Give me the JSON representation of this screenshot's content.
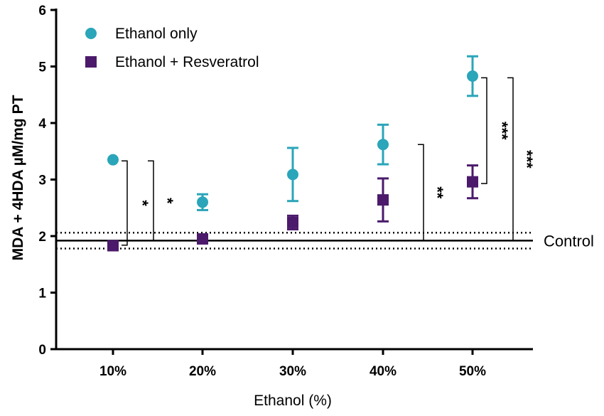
{
  "chart_data": {
    "type": "scatter",
    "xlabel": "Ethanol (%)",
    "ylabel": "MDA + 4HDA µM/mg PT",
    "ylim": [
      0,
      6
    ],
    "yticks": [
      "0",
      "1",
      "2",
      "3",
      "4",
      "5",
      "6"
    ],
    "categories": [
      "10%",
      "20%",
      "30%",
      "40%",
      "50%"
    ],
    "colors": {
      "ethanol": "#2aa5b9",
      "resveratrol": "#4b1a6b"
    },
    "series": [
      {
        "name": "Ethanol only",
        "marker": "circle",
        "values": [
          3.35,
          2.6,
          3.09,
          3.62,
          4.83
        ],
        "errors": [
          0,
          0.14,
          0.47,
          0.35,
          0.35
        ]
      },
      {
        "name": "Ethanol + Resveratrol",
        "marker": "square",
        "values": [
          1.83,
          1.95,
          2.24,
          2.64,
          2.96
        ],
        "errors": [
          0,
          0,
          0.12,
          0.38,
          0.29
        ]
      }
    ],
    "control": {
      "label": "Control",
      "value": 1.92,
      "upper": 2.06,
      "lower": 1.78
    },
    "significance": [
      {
        "category": "10%",
        "from": 3.33,
        "to": 1.84,
        "label": "*",
        "level": "inner"
      },
      {
        "category": "10%",
        "from": 3.33,
        "to": 1.92,
        "label": "*",
        "level": "outer"
      },
      {
        "category": "40%",
        "from": 3.62,
        "to": 1.92,
        "label": "**",
        "level": "outer"
      },
      {
        "category": "50%",
        "from": 4.8,
        "to": 2.93,
        "label": "***",
        "level": "inner"
      },
      {
        "category": "50%",
        "from": 4.8,
        "to": 1.92,
        "label": "***",
        "level": "outer"
      }
    ]
  }
}
